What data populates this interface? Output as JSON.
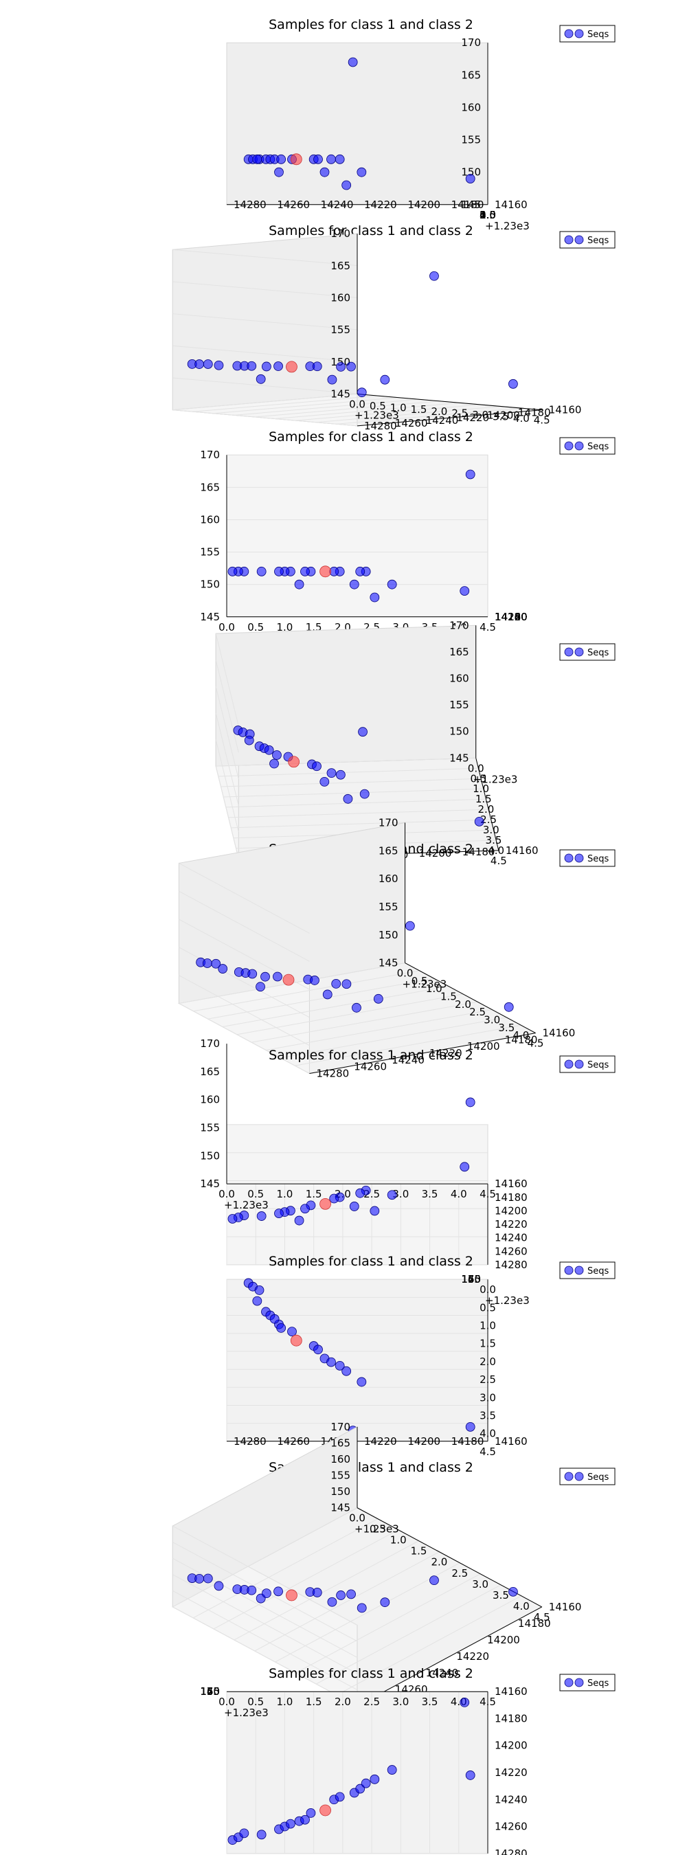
{
  "chart_data": [
    {
      "type": "scatter",
      "title": "Samples for class 1 and class 2",
      "xlabel": "",
      "ylabel": "",
      "zlabel": "",
      "legend": {
        "entries": [
          "Seqs"
        ],
        "placement": "top-right"
      },
      "grid": true,
      "z_ticks": [
        "145",
        "150",
        "155",
        "160",
        "165",
        "170"
      ],
      "x_ticks": [
        "0.0",
        "0.5",
        "1.0",
        "1.5",
        "2.0",
        "2.5",
        "3.0",
        "3.5",
        "4.0",
        "4.5"
      ],
      "x_offset_label": "+1.23e3",
      "y_ticks": [
        "14280",
        "14260",
        "14240",
        "14220",
        "14200",
        "14180",
        "14160"
      ],
      "x_range": [
        0.0,
        4.5
      ],
      "y_range": [
        14160,
        14280
      ],
      "z_range": [
        145,
        170
      ],
      "series": [
        {
          "name": "Seqs",
          "color": "#0000ff",
          "points": [
            {
              "x": 0.1,
              "y": 14270,
              "z": 152
            },
            {
              "x": 0.2,
              "y": 14268,
              "z": 152
            },
            {
              "x": 0.3,
              "y": 14265,
              "z": 152
            },
            {
              "x": 0.6,
              "y": 14266,
              "z": 152
            },
            {
              "x": 0.9,
              "y": 14262,
              "z": 152
            },
            {
              "x": 1.0,
              "y": 14260,
              "z": 152
            },
            {
              "x": 1.1,
              "y": 14258,
              "z": 152
            },
            {
              "x": 1.25,
              "y": 14256,
              "z": 150
            },
            {
              "x": 1.35,
              "y": 14255,
              "z": 152
            },
            {
              "x": 1.45,
              "y": 14250,
              "z": 152
            },
            {
              "x": 1.85,
              "y": 14240,
              "z": 152
            },
            {
              "x": 1.95,
              "y": 14238,
              "z": 152
            },
            {
              "x": 2.2,
              "y": 14235,
              "z": 150
            },
            {
              "x": 2.3,
              "y": 14232,
              "z": 152
            },
            {
              "x": 2.4,
              "y": 14228,
              "z": 152
            },
            {
              "x": 2.55,
              "y": 14225,
              "z": 148
            },
            {
              "x": 2.85,
              "y": 14218,
              "z": 150
            },
            {
              "x": 4.1,
              "y": 14168,
              "z": 149
            },
            {
              "x": 4.2,
              "y": 14222,
              "z": 167
            }
          ]
        },
        {
          "name": "",
          "color": "#ff4040",
          "points": [
            {
              "x": 1.7,
              "y": 14248,
              "z": 152
            }
          ]
        }
      ]
    }
  ],
  "views": [
    {
      "elev": 0,
      "azim": -90
    },
    {
      "elev": 8,
      "azim": -45
    },
    {
      "elev": 0,
      "azim": 0
    },
    {
      "elev": 35,
      "azim": -85
    },
    {
      "elev": 30,
      "azim": -60
    },
    {
      "elev": 30,
      "azim": 0
    },
    {
      "elev": 90,
      "azim": -90
    },
    {
      "elev": 60,
      "azim": -45
    },
    {
      "elev": 90,
      "azim": 0
    }
  ]
}
